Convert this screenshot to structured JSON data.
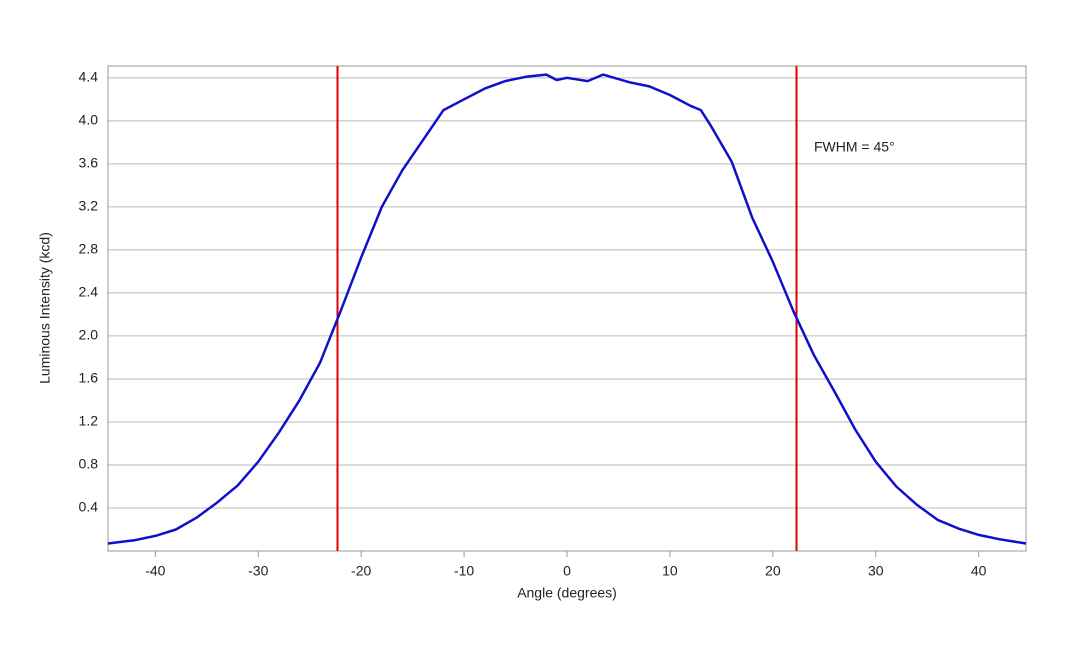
{
  "chart_data": {
    "type": "line",
    "x_label": "Angle (degrees)",
    "y_label": "Luminous Intensity (kcd)",
    "annotation": {
      "text": "FWHM = 45°",
      "x": 24.0,
      "y": 3.75
    },
    "vlines": {
      "values": [
        -22.3,
        22.3
      ],
      "color": "#e00000"
    },
    "xlim": [
      -44.6,
      44.6
    ],
    "xticks": [
      -40,
      -30,
      -20,
      -10,
      0,
      10,
      20,
      30,
      40
    ],
    "ylim": [
      0,
      4.51
    ],
    "yticks": [
      0.4,
      0.8,
      1.2,
      1.6,
      {
        "value": 2,
        "label": "2.0"
      },
      2.4,
      2.8,
      3.2,
      3.6,
      {
        "value": 4,
        "label": "4.0"
      },
      4.4
    ],
    "grid": true,
    "series": [
      {
        "name": "Luminous Intensity",
        "color": "#1010cc",
        "x": [
          -44.6,
          -42,
          -40,
          -38,
          -36,
          -34,
          -32,
          -30,
          -28,
          -26,
          -24,
          -22,
          -20,
          -18,
          -16,
          -14,
          -12,
          -10,
          -8,
          -6,
          -4,
          -2,
          -1,
          0,
          2,
          3.5,
          6,
          8,
          10,
          12,
          13,
          14,
          16,
          18,
          20,
          22,
          24,
          26,
          28,
          30,
          32,
          34,
          36,
          38,
          40,
          42,
          44.6
        ],
        "values": [
          0.07,
          0.1,
          0.14,
          0.2,
          0.31,
          0.45,
          0.61,
          0.83,
          1.1,
          1.4,
          1.75,
          2.23,
          2.73,
          3.2,
          3.54,
          3.82,
          4.1,
          4.2,
          4.3,
          4.37,
          4.41,
          4.43,
          4.38,
          4.4,
          4.37,
          4.43,
          4.36,
          4.32,
          4.24,
          4.14,
          4.1,
          3.95,
          3.62,
          3.1,
          2.69,
          2.23,
          1.82,
          1.48,
          1.13,
          0.83,
          0.6,
          0.43,
          0.29,
          0.21,
          0.15,
          0.11,
          0.07
        ]
      }
    ]
  }
}
